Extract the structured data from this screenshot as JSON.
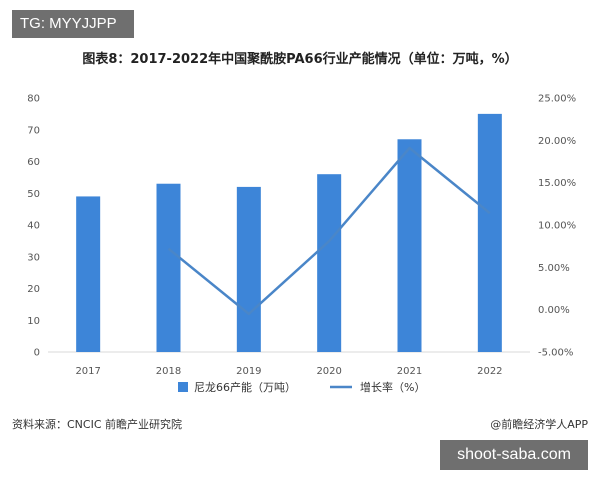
{
  "tag": "TG: MYYJJPP",
  "title": "图表8：2017-2022年中国聚酰胺PA66行业产能情况（单位：万吨，%）",
  "footer": {
    "source": "资料来源：CNCIC 前瞻产业研究院",
    "brand": "@前瞻经济学人APP"
  },
  "badge": "shoot-saba.com",
  "colors": {
    "bar": "#3d85d8",
    "line": "#4a86c8",
    "axis": "#d9d9d9"
  },
  "chart_data": {
    "type": "bar",
    "categories": [
      "2017",
      "2018",
      "2019",
      "2020",
      "2021",
      "2022"
    ],
    "series": [
      {
        "name": "尼龙66产能（万吨）",
        "type": "bar",
        "axis": "left",
        "values": [
          49,
          53,
          52,
          56,
          67,
          75
        ]
      },
      {
        "name": "增长率（%）",
        "type": "line",
        "axis": "right",
        "values": [
          null,
          7.2,
          -0.5,
          8.1,
          19.1,
          11.4
        ]
      }
    ],
    "ylim_left": [
      0,
      80
    ],
    "yticks_left": [
      "0",
      "10",
      "20",
      "30",
      "40",
      "50",
      "60",
      "70",
      "80"
    ],
    "ylim_right": [
      -5,
      25
    ],
    "yticks_right": [
      "-5.00%",
      "0.00%",
      "5.00%",
      "10.00%",
      "15.00%",
      "20.00%",
      "25.00%"
    ],
    "legend_position": "bottom-center"
  }
}
